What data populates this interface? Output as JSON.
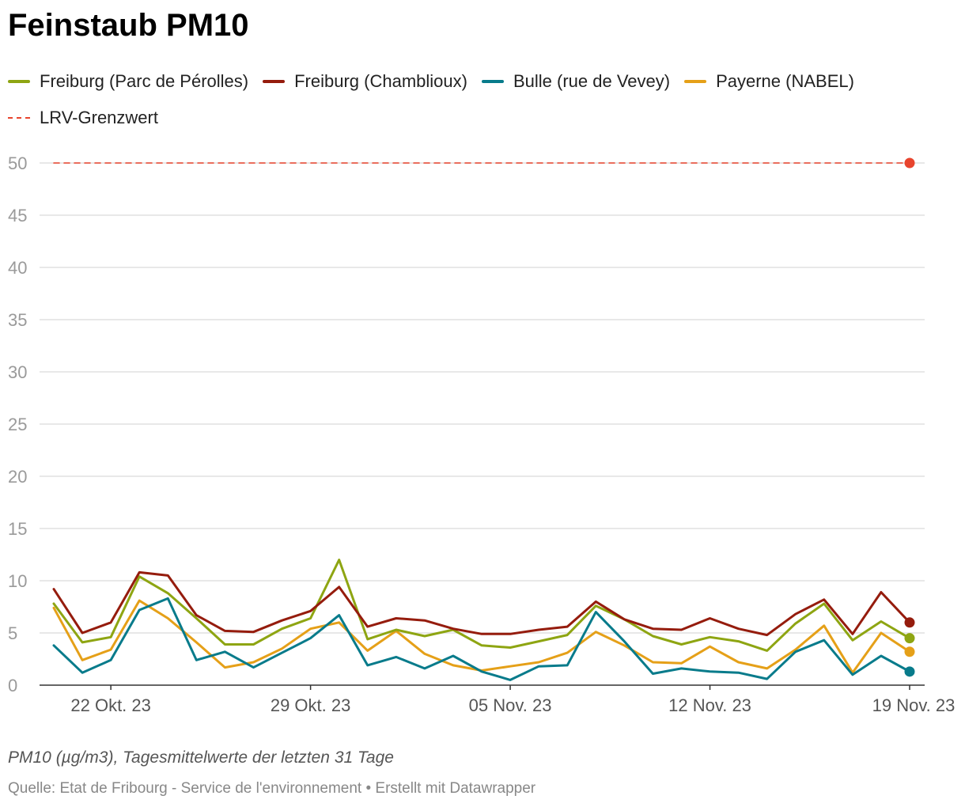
{
  "title": "Feinstaub PM10",
  "legend": [
    {
      "label": "Freiburg (Parc de Pérolles)",
      "color": "#8ea512",
      "style": "solid"
    },
    {
      "label": "Freiburg (Chamblioux)",
      "color": "#951c0d",
      "style": "solid"
    },
    {
      "label": "Bulle (rue de Vevey)",
      "color": "#087b8b",
      "style": "solid"
    },
    {
      "label": "Payerne (NABEL)",
      "color": "#e5a018",
      "style": "solid"
    },
    {
      "label": "LRV-Grenzwert",
      "color": "#e8442d",
      "style": "dashed"
    }
  ],
  "footer": {
    "note": "PM10 (µg/m3), Tagesmittelwerte der letzten 31 Tage",
    "source": "Quelle: Etat de Fribourg - Service de l'environnement • Erstellt mit Datawrapper"
  },
  "chart_data": {
    "type": "line",
    "x": [
      "2023-10-20",
      "2023-10-21",
      "2023-10-22",
      "2023-10-23",
      "2023-10-24",
      "2023-10-25",
      "2023-10-26",
      "2023-10-27",
      "2023-10-28",
      "2023-10-29",
      "2023-10-30",
      "2023-10-31",
      "2023-11-01",
      "2023-11-02",
      "2023-11-03",
      "2023-11-04",
      "2023-11-05",
      "2023-11-06",
      "2023-11-07",
      "2023-11-08",
      "2023-11-09",
      "2023-11-10",
      "2023-11-11",
      "2023-11-12",
      "2023-11-13",
      "2023-11-14",
      "2023-11-15",
      "2023-11-16",
      "2023-11-17",
      "2023-11-18",
      "2023-11-19"
    ],
    "xticks": [
      {
        "label": "22 Okt. 23",
        "x": "2023-10-22"
      },
      {
        "label": "29 Okt. 23",
        "x": "2023-10-29"
      },
      {
        "label": "05 Nov. 23",
        "x": "2023-11-05"
      },
      {
        "label": "12 Nov. 23",
        "x": "2023-11-12"
      },
      {
        "label": "19 Nov. 23",
        "x": "2023-11-19"
      }
    ],
    "ylim": [
      0,
      50
    ],
    "yticks": [
      0,
      5,
      10,
      15,
      20,
      25,
      30,
      35,
      40,
      45,
      50
    ],
    "grid": true,
    "legend_position": "top",
    "series": [
      {
        "name": "Freiburg (Parc de Pérolles)",
        "color": "#8ea512",
        "values": [
          7.8,
          4.1,
          4.6,
          10.4,
          8.8,
          6.4,
          3.9,
          3.9,
          5.4,
          6.4,
          12.0,
          4.4,
          5.3,
          4.7,
          5.3,
          3.8,
          3.6,
          4.2,
          4.8,
          7.6,
          6.3,
          4.7,
          3.9,
          4.6,
          4.2,
          3.3,
          5.9,
          7.8,
          4.3,
          6.1,
          4.5
        ]
      },
      {
        "name": "Freiburg (Chamblioux)",
        "color": "#951c0d",
        "values": [
          9.2,
          5.0,
          6.0,
          10.8,
          10.5,
          6.7,
          5.2,
          5.1,
          6.2,
          7.1,
          9.4,
          5.6,
          6.4,
          6.2,
          5.4,
          4.9,
          4.9,
          5.3,
          5.6,
          8.0,
          6.3,
          5.4,
          5.3,
          6.4,
          5.4,
          4.8,
          6.8,
          8.2,
          4.9,
          8.9,
          6.0
        ]
      },
      {
        "name": "Bulle (rue de Vevey)",
        "color": "#087b8b",
        "values": [
          3.8,
          1.2,
          2.4,
          7.2,
          8.3,
          2.4,
          3.2,
          1.7,
          3.1,
          4.5,
          6.7,
          1.9,
          2.7,
          1.6,
          2.8,
          1.3,
          0.5,
          1.8,
          1.9,
          7.0,
          4.2,
          1.1,
          1.6,
          1.3,
          1.2,
          0.6,
          3.2,
          4.3,
          1.0,
          2.8,
          1.3
        ]
      },
      {
        "name": "Payerne (NABEL)",
        "color": "#e5a018",
        "values": [
          7.4,
          2.4,
          3.4,
          8.1,
          6.4,
          4.1,
          1.7,
          2.2,
          3.5,
          5.4,
          6.0,
          3.3,
          5.2,
          3.0,
          1.9,
          1.4,
          1.8,
          2.2,
          3.1,
          5.1,
          3.8,
          2.2,
          2.1,
          3.7,
          2.2,
          1.6,
          3.4,
          5.7,
          1.2,
          5.0,
          3.2
        ]
      },
      {
        "name": "LRV-Grenzwert",
        "color": "#e8442d",
        "dashed": true,
        "values": [
          50,
          50,
          50,
          50,
          50,
          50,
          50,
          50,
          50,
          50,
          50,
          50,
          50,
          50,
          50,
          50,
          50,
          50,
          50,
          50,
          50,
          50,
          50,
          50,
          50,
          50,
          50,
          50,
          50,
          50,
          50
        ]
      }
    ]
  }
}
